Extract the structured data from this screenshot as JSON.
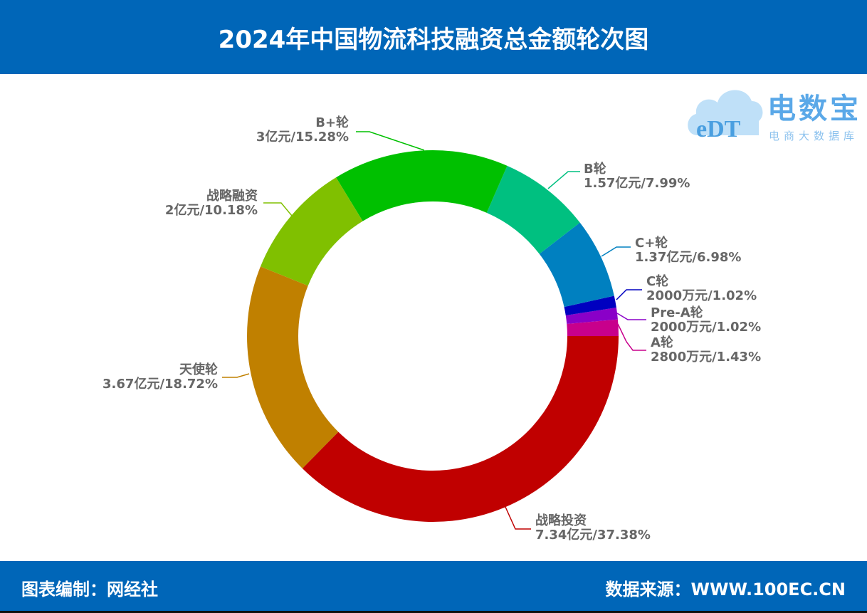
{
  "header": {
    "title": "2024年中国物流科技融资总金额轮次图"
  },
  "logo": {
    "mark": "eDT",
    "brand": "电数宝",
    "tagline": "电商大数据库"
  },
  "footer": {
    "left": "图表编制：网经社",
    "right": "数据来源：WWW.100EC.CN"
  },
  "chart_data": {
    "type": "pie",
    "subtype": "donut",
    "title": "2024年中国物流科技融资总金额轮次图",
    "unit": "亿元",
    "categories": [
      "A轮",
      "Pre-A轮",
      "C轮",
      "C+轮",
      "B轮",
      "B+轮",
      "战略融资",
      "天使轮",
      "战略投资"
    ],
    "amounts_text": [
      "2800万元",
      "2000万元",
      "2000万元",
      "1.37亿元",
      "1.57亿元",
      "3亿元",
      "2亿元",
      "3.67亿元",
      "7.34亿元"
    ],
    "values": [
      0.28,
      0.2,
      0.2,
      1.37,
      1.57,
      3,
      2,
      3.67,
      7.34
    ],
    "percentages": [
      1.43,
      1.02,
      1.02,
      6.98,
      7.99,
      15.28,
      10.18,
      18.72,
      37.38
    ],
    "colors": [
      "#c8008c",
      "#8a00c8",
      "#0000c0",
      "#0080c0",
      "#00c080",
      "#00c000",
      "#80c000",
      "#c08000",
      "#c00000"
    ],
    "labels": [
      {
        "name": "A轮",
        "value": "2800万元/1.43%"
      },
      {
        "name": "Pre-A轮",
        "value": "2000万元/1.02%"
      },
      {
        "name": "C轮",
        "value": "2000万元/1.02%"
      },
      {
        "name": "C+轮",
        "value": "1.37亿元/6.98%"
      },
      {
        "name": "B轮",
        "value": "1.57亿元/7.99%"
      },
      {
        "name": "B+轮",
        "value": "3亿元/15.28%"
      },
      {
        "name": "战略融资",
        "value": "2亿元/10.18%"
      },
      {
        "name": "天使轮",
        "value": "3.67亿元/18.72%"
      },
      {
        "name": "战略投资",
        "value": "7.34亿元/37.38%"
      }
    ],
    "legend": "none",
    "start_angle_deg": 0,
    "direction": "counterclockwise"
  }
}
